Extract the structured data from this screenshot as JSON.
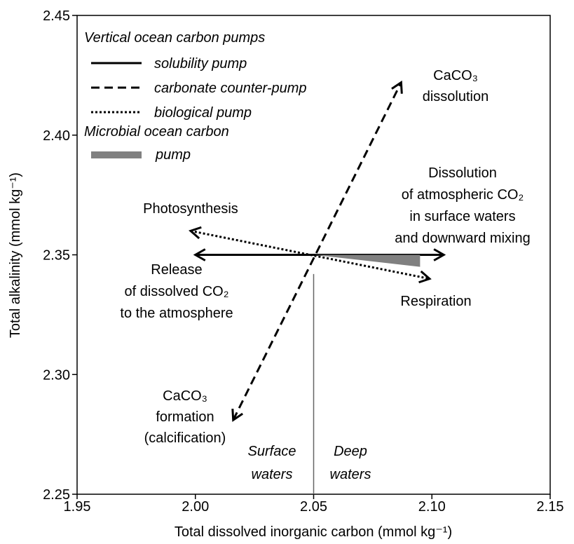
{
  "chart_data": {
    "type": "vector",
    "xlabel": "Total dissolved inorganic carbon (mmol kg⁻¹)",
    "ylabel": "Total alkalinity (mmol kg⁻¹)",
    "xlim": [
      1.95,
      2.15
    ],
    "ylim": [
      2.25,
      2.45
    ],
    "xticks": [
      1.95,
      {
        "value": 2.0,
        "label": "2.00"
      },
      2.05,
      {
        "value": 2.1,
        "label": "2.10"
      },
      2.15
    ],
    "yticks": [
      2.25,
      {
        "value": 2.3,
        "label": "2.30"
      },
      2.35,
      {
        "value": 2.4,
        "label": "2.40"
      },
      2.45
    ],
    "legend_title": "Vertical ocean carbon pumps",
    "series": [
      {
        "name": "solubility pump",
        "color": "#000000",
        "dash": "solid",
        "x": [
          2.0,
          2.105
        ],
        "y": [
          2.35,
          2.35
        ]
      },
      {
        "name": "carbonate counter-pump",
        "color": "#000000",
        "dash": "dashed",
        "x": [
          2.016,
          2.087
        ],
        "y": [
          2.281,
          2.422
        ]
      },
      {
        "name": "biological pump",
        "color": "#000000",
        "dash": "dotted",
        "x": [
          1.998,
          2.099
        ],
        "y": [
          2.36,
          2.34
        ]
      },
      {
        "name": "Microbial ocean carbon pump",
        "color": "#808080",
        "dash": "wedge",
        "x": [
          2.05,
          2.095,
          2.095
        ],
        "y": [
          2.35,
          2.35,
          2.345
        ]
      }
    ],
    "divider": {
      "x": [
        2.05,
        2.05
      ],
      "y": [
        2.342,
        2.25
      ]
    },
    "annotations": [
      {
        "lines": [
          "CaCO₃",
          "dissolution"
        ]
      },
      {
        "lines": [
          "Photosynthesis"
        ]
      },
      {
        "lines": [
          "Dissolution",
          "of atmospheric CO₂",
          "in surface waters",
          "and downward mixing"
        ]
      },
      {
        "lines": [
          "Release",
          "of dissolved CO₂",
          "to the atmosphere"
        ]
      },
      {
        "lines": [
          "Respiration"
        ]
      },
      {
        "lines": [
          "CaCO₃",
          "formation",
          "(calcification)"
        ]
      },
      {
        "lines": [
          "Surface",
          "waters"
        ]
      },
      {
        "lines": [
          "Deep",
          "waters"
        ]
      }
    ]
  }
}
